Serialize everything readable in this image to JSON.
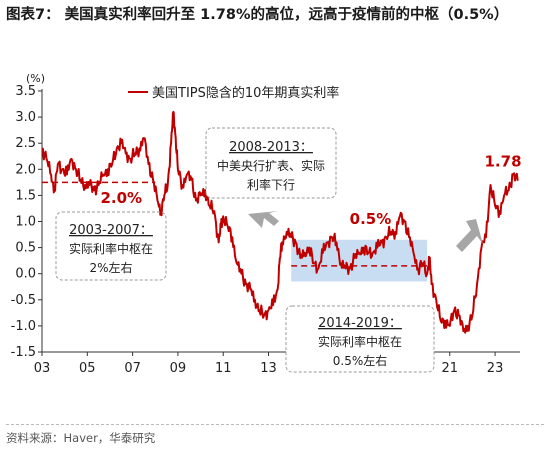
{
  "figure": {
    "title": "图表7：  美国真实利率回升至  1.78%的高位，远高于疫情前的中枢（0.5%）",
    "source": "资料来源：Haver，华泰研究"
  },
  "chart_data": {
    "type": "line",
    "ylabel": "(%)",
    "ylim": [
      -1.5,
      3.5
    ],
    "yticks": [
      -1.5,
      -1.0,
      -0.5,
      0.0,
      0.5,
      1.0,
      1.5,
      2.0,
      2.5,
      3.0,
      3.5
    ],
    "ytick_labels": [
      "-1.5",
      "-1.0",
      "-0.5",
      "0.0",
      "0.5",
      "1.0",
      "1.5",
      "2.0",
      "2.5",
      "3.0",
      "3.5"
    ],
    "xlim": [
      2003.0,
      2024.1
    ],
    "xticks": [
      2003,
      2005,
      2007,
      2009,
      2011,
      2013,
      2015,
      2017,
      2019,
      2021,
      2023
    ],
    "xtick_labels": [
      "03",
      "05",
      "07",
      "09",
      "11",
      "13",
      "15",
      "17",
      "19",
      "21",
      "23"
    ],
    "grid": false,
    "legend": "top",
    "series": [
      {
        "name": "美国TIPS隐含的10年期真实利率",
        "color": "#c00000",
        "points": [
          [
            2003.0,
            2.4
          ],
          [
            2003.2,
            2.2
          ],
          [
            2003.4,
            1.9
          ],
          [
            2003.55,
            1.6
          ],
          [
            2003.7,
            2.1
          ],
          [
            2003.9,
            2.0
          ],
          [
            2004.1,
            1.9
          ],
          [
            2004.3,
            2.2
          ],
          [
            2004.5,
            2.0
          ],
          [
            2004.7,
            1.8
          ],
          [
            2004.9,
            1.7
          ],
          [
            2005.1,
            1.7
          ],
          [
            2005.3,
            1.6
          ],
          [
            2005.5,
            1.7
          ],
          [
            2005.7,
            1.9
          ],
          [
            2005.9,
            2.0
          ],
          [
            2006.1,
            2.1
          ],
          [
            2006.3,
            2.4
          ],
          [
            2006.5,
            2.5
          ],
          [
            2006.7,
            2.3
          ],
          [
            2006.9,
            2.2
          ],
          [
            2007.1,
            2.3
          ],
          [
            2007.3,
            2.4
          ],
          [
            2007.5,
            2.6
          ],
          [
            2007.7,
            2.1
          ],
          [
            2007.9,
            1.8
          ],
          [
            2008.1,
            1.4
          ],
          [
            2008.25,
            1.2
          ],
          [
            2008.4,
            1.5
          ],
          [
            2008.55,
            1.7
          ],
          [
            2008.7,
            2.5
          ],
          [
            2008.8,
            3.1
          ],
          [
            2008.9,
            2.6
          ],
          [
            2009.0,
            2.0
          ],
          [
            2009.2,
            1.7
          ],
          [
            2009.4,
            1.9
          ],
          [
            2009.6,
            1.8
          ],
          [
            2009.8,
            1.4
          ],
          [
            2010.0,
            1.5
          ],
          [
            2010.2,
            1.6
          ],
          [
            2010.4,
            1.3
          ],
          [
            2010.6,
            1.2
          ],
          [
            2010.8,
            0.6
          ],
          [
            2010.9,
            0.9
          ],
          [
            2011.0,
            1.1
          ],
          [
            2011.2,
            0.9
          ],
          [
            2011.4,
            0.7
          ],
          [
            2011.6,
            0.2
          ],
          [
            2011.8,
            0.0
          ],
          [
            2012.0,
            -0.2
          ],
          [
            2012.2,
            -0.3
          ],
          [
            2012.4,
            -0.5
          ],
          [
            2012.6,
            -0.7
          ],
          [
            2012.8,
            -0.8
          ],
          [
            2013.0,
            -0.7
          ],
          [
            2013.2,
            -0.6
          ],
          [
            2013.4,
            -0.3
          ],
          [
            2013.5,
            0.3
          ],
          [
            2013.6,
            0.6
          ],
          [
            2013.8,
            0.8
          ],
          [
            2014.0,
            0.7
          ],
          [
            2014.2,
            0.6
          ],
          [
            2014.4,
            0.3
          ],
          [
            2014.6,
            0.4
          ],
          [
            2014.8,
            0.5
          ],
          [
            2015.0,
            0.2
          ],
          [
            2015.2,
            0.1
          ],
          [
            2015.4,
            0.4
          ],
          [
            2015.6,
            0.6
          ],
          [
            2015.8,
            0.7
          ],
          [
            2016.0,
            0.6
          ],
          [
            2016.2,
            0.2
          ],
          [
            2016.4,
            0.1
          ],
          [
            2016.6,
            0.1
          ],
          [
            2016.8,
            0.3
          ],
          [
            2017.0,
            0.4
          ],
          [
            2017.2,
            0.5
          ],
          [
            2017.4,
            0.4
          ],
          [
            2017.6,
            0.4
          ],
          [
            2017.8,
            0.5
          ],
          [
            2018.0,
            0.6
          ],
          [
            2018.2,
            0.7
          ],
          [
            2018.4,
            0.8
          ],
          [
            2018.6,
            0.8
          ],
          [
            2018.8,
            1.1
          ],
          [
            2019.0,
            1.0
          ],
          [
            2019.2,
            0.7
          ],
          [
            2019.4,
            0.4
          ],
          [
            2019.6,
            0.1
          ],
          [
            2019.8,
            0.2
          ],
          [
            2020.0,
            0.0
          ],
          [
            2020.1,
            0.3
          ],
          [
            2020.2,
            -0.2
          ],
          [
            2020.4,
            -0.5
          ],
          [
            2020.6,
            -0.9
          ],
          [
            2020.8,
            -0.9
          ],
          [
            2021.0,
            -1.0
          ],
          [
            2021.2,
            -0.7
          ],
          [
            2021.4,
            -0.8
          ],
          [
            2021.6,
            -1.1
          ],
          [
            2021.8,
            -1.0
          ],
          [
            2022.0,
            -0.8
          ],
          [
            2022.2,
            -0.2
          ],
          [
            2022.4,
            0.5
          ],
          [
            2022.6,
            0.7
          ],
          [
            2022.8,
            1.7
          ],
          [
            2023.0,
            1.3
          ],
          [
            2023.2,
            1.2
          ],
          [
            2023.4,
            1.5
          ],
          [
            2023.6,
            1.6
          ],
          [
            2023.8,
            1.9
          ],
          [
            2024.0,
            1.78
          ]
        ]
      }
    ],
    "reference_lines": [
      {
        "x_from": 2003.0,
        "x_to": 2008.0,
        "y": 1.75,
        "color": "#c00000",
        "style": "dashed"
      },
      {
        "x_from": 2014.0,
        "x_to": 2020.0,
        "y": 0.15,
        "color": "#c00000",
        "style": "dashed"
      }
    ],
    "shaded_region": {
      "x_from": 2014.0,
      "x_to": 2020.0,
      "y_from": -0.15,
      "y_to": 0.65,
      "color": "#c9ddf2"
    },
    "annotations": {
      "label_2_0": {
        "text": "2.0%",
        "x": 2006.5,
        "y": 1.35,
        "color": "#c00000"
      },
      "label_0_5": {
        "text": "0.5%",
        "x": 2017.5,
        "y": 0.95,
        "color": "#c00000"
      },
      "label_1_78": {
        "text": "1.78",
        "x": 2023.35,
        "y": 2.05,
        "color": "#c00000"
      },
      "box_2003": {
        "line1": "2003-2007：",
        "line2": "实际利率中枢在",
        "line3": "2%左右"
      },
      "box_2008": {
        "line1": "2008-2013：",
        "line2": "中美央行扩表、实际",
        "line3": "利率下行"
      },
      "box_2014": {
        "line1": "2014-2019：",
        "line2": "实际利率中枢在",
        "line3": "0.5%左右"
      }
    },
    "arrow_color": "#a6a6a6"
  }
}
